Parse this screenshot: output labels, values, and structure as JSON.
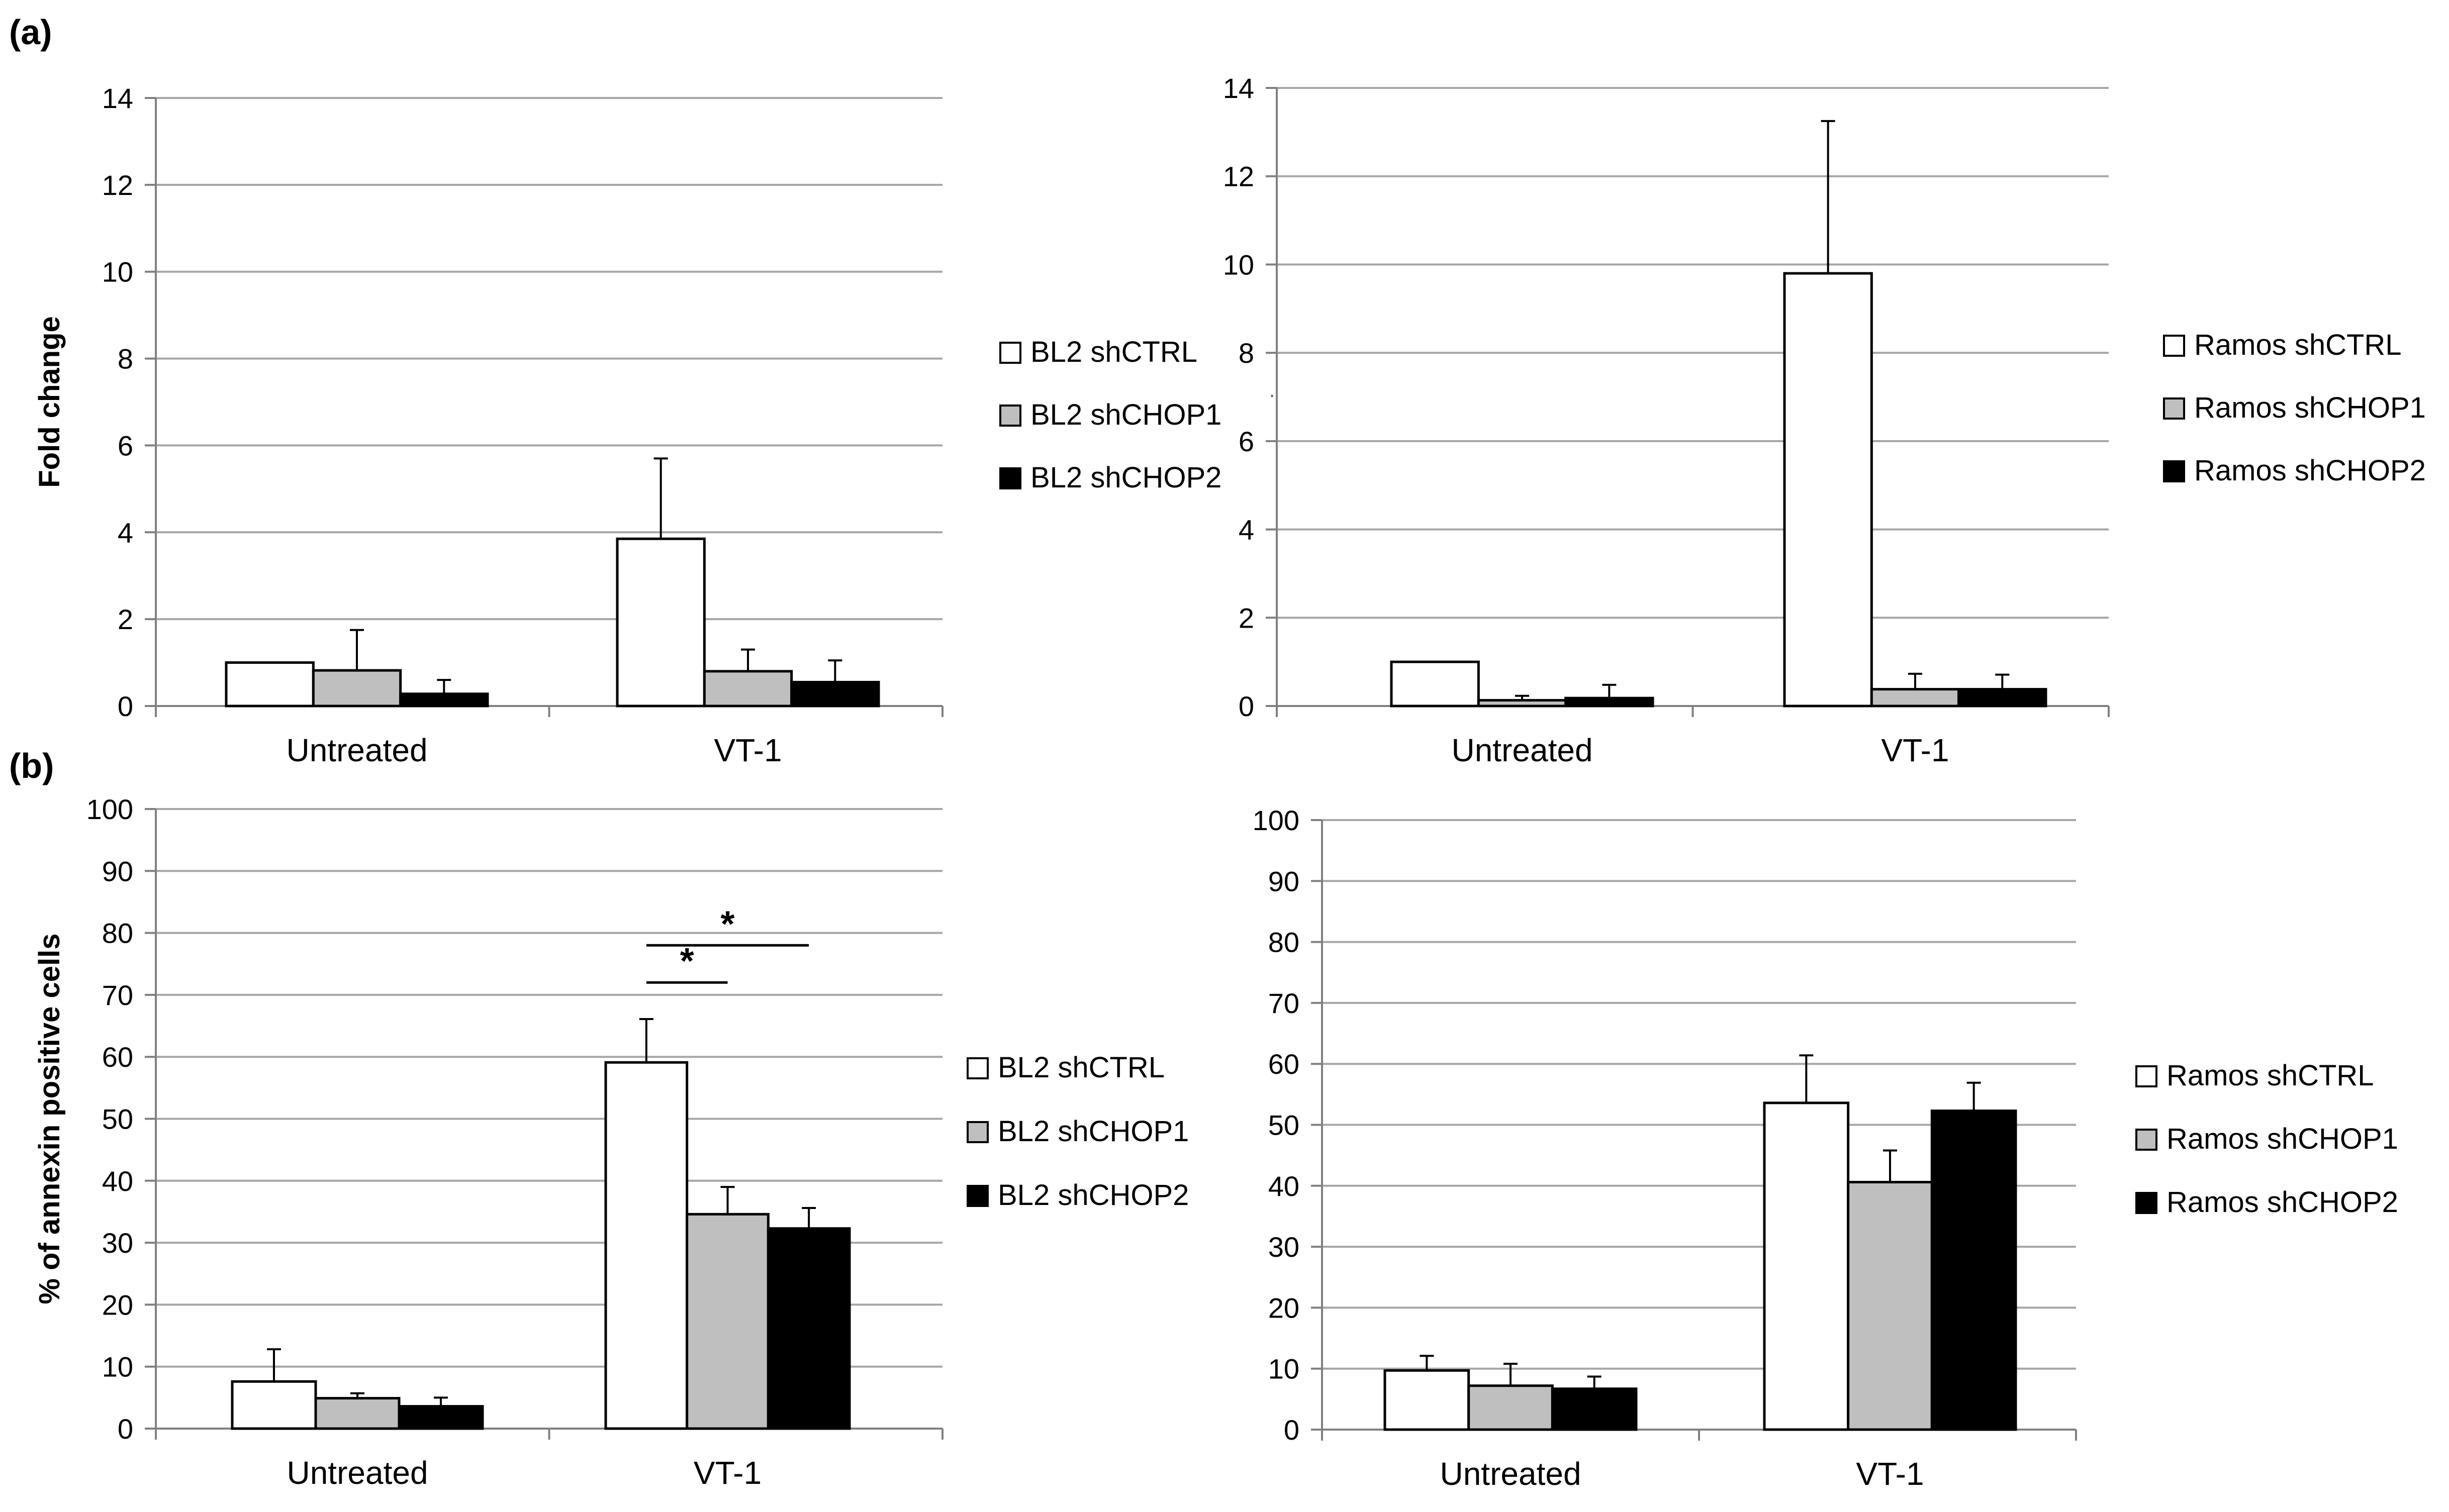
{
  "panel_labels": {
    "a": "(a)",
    "b": "(b)"
  },
  "colors": {
    "shCTRL": "#ffffff",
    "shCHOP1": "#bfbfbf",
    "shCHOP2": "#000000",
    "gridline": "#a6a6a6",
    "axis": "#808080"
  },
  "stray_mark": ".",
  "chart_data": [
    {
      "id": "a-left",
      "type": "bar",
      "title": "",
      "xlabel": "",
      "ylabel": "Fold change",
      "categories": [
        "Untreated",
        "VT-1"
      ],
      "ylim": [
        0,
        14
      ],
      "yticks": [
        0,
        2,
        4,
        6,
        8,
        10,
        12,
        14
      ],
      "grid": true,
      "legend_position": "right",
      "series": [
        {
          "name": "BL2 shCTRL",
          "color_key": "shCTRL",
          "values": [
            1.0,
            3.85
          ],
          "errors": [
            0.0,
            1.85
          ]
        },
        {
          "name": "BL2 shCHOP1",
          "color_key": "shCHOP1",
          "values": [
            0.82,
            0.8
          ],
          "errors": [
            0.93,
            0.5
          ]
        },
        {
          "name": "BL2 shCHOP2",
          "color_key": "shCHOP2",
          "values": [
            0.28,
            0.55
          ],
          "errors": [
            0.32,
            0.5
          ]
        }
      ],
      "annotations": []
    },
    {
      "id": "a-right",
      "type": "bar",
      "title": "",
      "xlabel": "",
      "ylabel": "",
      "categories": [
        "Untreated",
        "VT-1"
      ],
      "ylim": [
        0,
        14
      ],
      "yticks": [
        0,
        2,
        4,
        6,
        8,
        10,
        12,
        14
      ],
      "grid": true,
      "legend_position": "right",
      "series": [
        {
          "name": "Ramos shCTRL",
          "color_key": "shCTRL",
          "values": [
            1.0,
            9.8
          ],
          "errors": [
            0.0,
            3.45
          ]
        },
        {
          "name": "Ramos shCHOP1",
          "color_key": "shCHOP1",
          "values": [
            0.13,
            0.38
          ],
          "errors": [
            0.1,
            0.35
          ]
        },
        {
          "name": "Ramos shCHOP2",
          "color_key": "shCHOP2",
          "values": [
            0.18,
            0.38
          ],
          "errors": [
            0.3,
            0.33
          ]
        }
      ],
      "annotations": []
    },
    {
      "id": "b-left",
      "type": "bar",
      "title": "",
      "xlabel": "",
      "ylabel": "% of annexin positive cells",
      "categories": [
        "Untreated",
        "VT-1"
      ],
      "ylim": [
        0,
        100
      ],
      "yticks": [
        0,
        10,
        20,
        30,
        40,
        50,
        60,
        70,
        80,
        90,
        100
      ],
      "grid": true,
      "legend_position": "right",
      "series": [
        {
          "name": "BL2 shCTRL",
          "color_key": "shCTRL",
          "values": [
            7.6,
            59.1
          ],
          "errors": [
            5.2,
            7.0
          ]
        },
        {
          "name": "BL2 shCHOP1",
          "color_key": "shCHOP1",
          "values": [
            4.9,
            34.6
          ],
          "errors": [
            0.8,
            4.4
          ]
        },
        {
          "name": "BL2 shCHOP2",
          "color_key": "shCHOP2",
          "values": [
            3.6,
            32.3
          ],
          "errors": [
            1.4,
            3.3
          ]
        }
      ],
      "annotations": [
        {
          "text": "*",
          "category": "VT-1",
          "from_series": 0,
          "to_series": 1,
          "y": 72
        },
        {
          "text": "*",
          "category": "VT-1",
          "from_series": 0,
          "to_series": 2,
          "y": 78
        }
      ]
    },
    {
      "id": "b-right",
      "type": "bar",
      "title": "",
      "xlabel": "",
      "ylabel": "",
      "categories": [
        "Untreated",
        "VT-1"
      ],
      "ylim": [
        0,
        100
      ],
      "yticks": [
        0,
        10,
        20,
        30,
        40,
        50,
        60,
        70,
        80,
        90,
        100
      ],
      "grid": true,
      "legend_position": "right",
      "series": [
        {
          "name": "Ramos shCTRL",
          "color_key": "shCTRL",
          "values": [
            9.7,
            53.6
          ],
          "errors": [
            2.4,
            7.8
          ]
        },
        {
          "name": "Ramos shCHOP1",
          "color_key": "shCHOP1",
          "values": [
            7.2,
            40.6
          ],
          "errors": [
            3.6,
            5.2
          ]
        },
        {
          "name": "Ramos shCHOP2",
          "color_key": "shCHOP2",
          "values": [
            6.7,
            52.3
          ],
          "errors": [
            2.0,
            4.6
          ]
        }
      ],
      "annotations": []
    }
  ]
}
